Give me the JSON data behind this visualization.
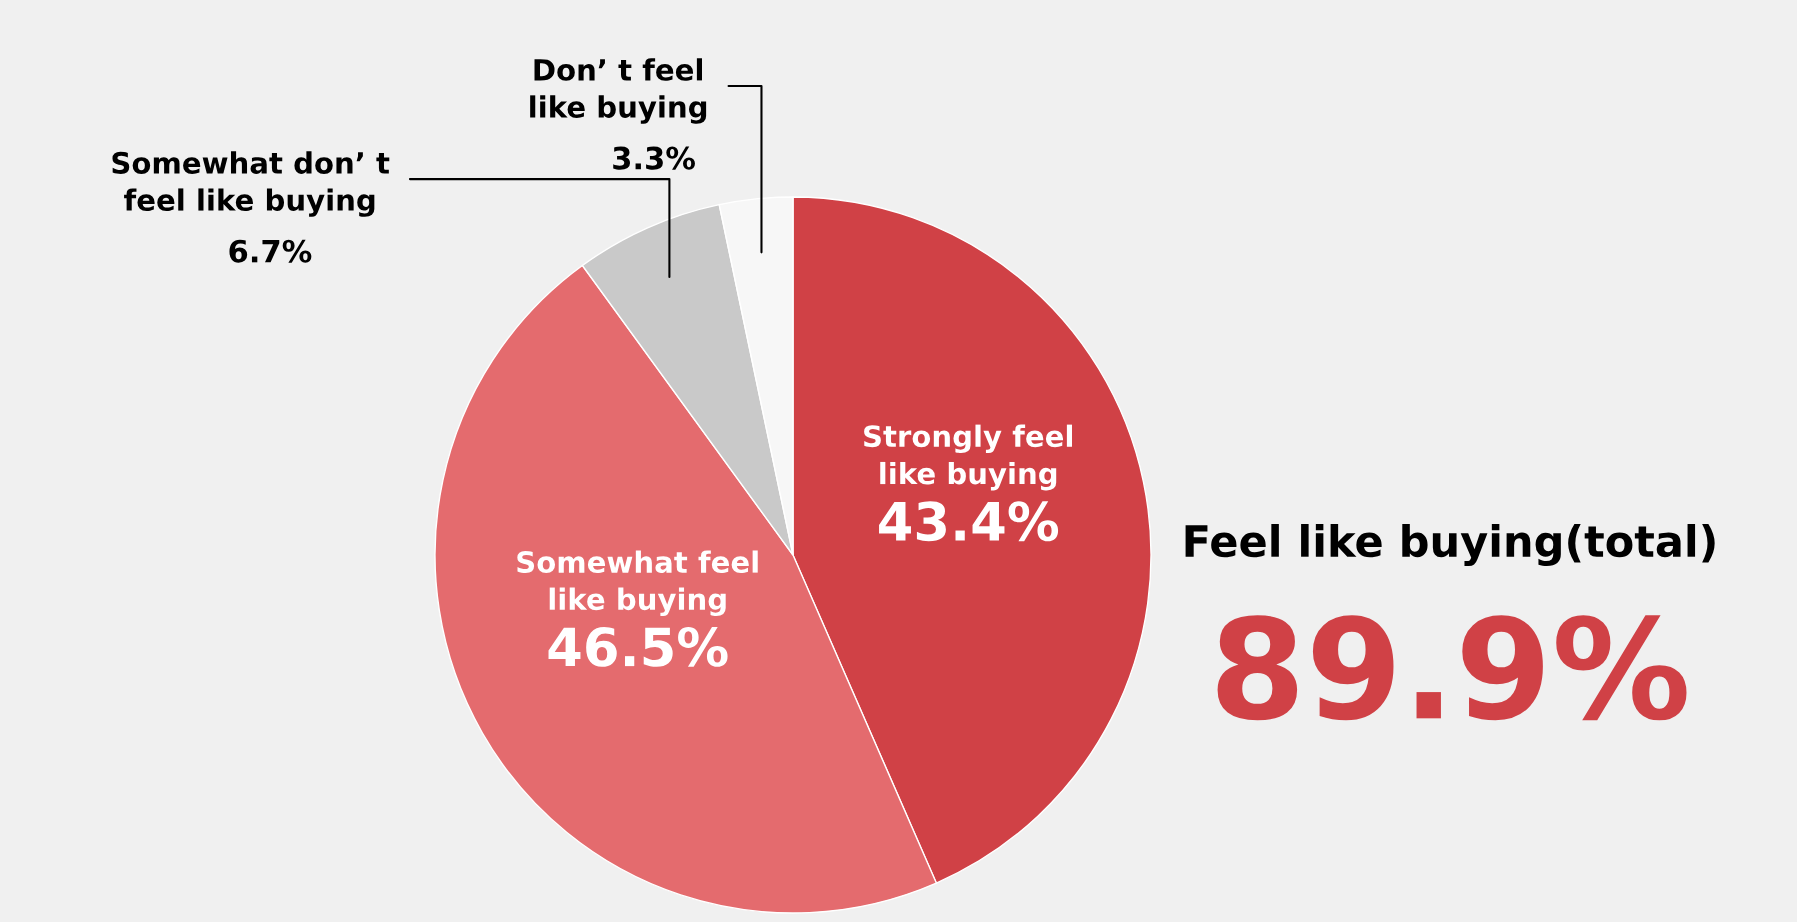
{
  "chart_data": {
    "type": "pie",
    "categories": [
      "Strongly feel\nlike buying",
      "Somewhat feel\nlike buying",
      "Somewhat don’ t\nfeel like buying",
      "Don’ t feel\nlike buying"
    ],
    "values": [
      43.4,
      46.5,
      6.7,
      3.3
    ],
    "colors": [
      "#d04146",
      "#e46b6e",
      "#c9c9c9",
      "#f7f7f7"
    ],
    "value_labels": [
      "43.4%",
      "46.5%",
      "6.7%",
      "3.3%"
    ],
    "annotations": [
      "Feel like buying(total)",
      "89.9%"
    ],
    "legend": false
  }
}
